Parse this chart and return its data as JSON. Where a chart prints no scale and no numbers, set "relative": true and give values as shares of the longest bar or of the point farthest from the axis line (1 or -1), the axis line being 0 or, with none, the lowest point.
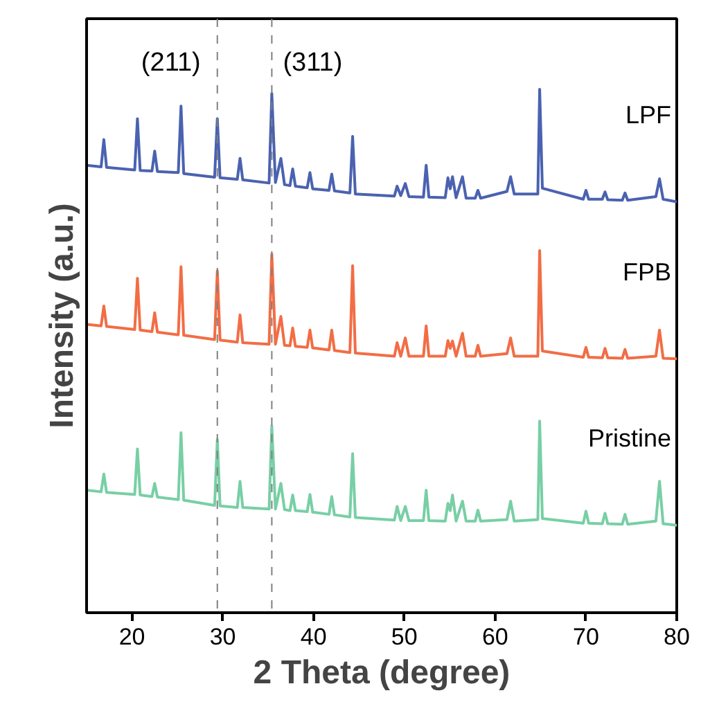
{
  "chart_data": {
    "type": "line",
    "xlabel": "2 Theta (degree)",
    "ylabel": "Intensity (a.u.)",
    "relative": true,
    "tick_labels": "x",
    "grid": false,
    "marker": "none",
    "line_style": "solid",
    "x": [
      15,
      16.6,
      16.9,
      17.2,
      20.3,
      20.6,
      20.9,
      22.2,
      22.5,
      22.8,
      25.1,
      25.4,
      25.7,
      29.1,
      29.4,
      29.7,
      31.6,
      31.9,
      32.2,
      35.1,
      35.4,
      35.8,
      36.4,
      36.8,
      37.4,
      37.7,
      38.0,
      39.3,
      39.6,
      39.9,
      41.7,
      42.0,
      42.3,
      44.0,
      44.3,
      44.6,
      48.9,
      49.2,
      49.6,
      50.1,
      50.5,
      52.1,
      52.4,
      52.7,
      54.5,
      54.8,
      55.05,
      55.3,
      55.7,
      56.4,
      56.8,
      57.8,
      58.1,
      58.4,
      61.3,
      61.7,
      62.1,
      64.7,
      64.9,
      65.2,
      69.7,
      70.0,
      70.3,
      71.8,
      72.1,
      72.4,
      74.0,
      74.3,
      74.6,
      77.7,
      78.1,
      78.5,
      80
    ],
    "xlim": [
      15,
      80
    ],
    "xticks": [
      20,
      30,
      40,
      50,
      60,
      70,
      80
    ],
    "series": [
      {
        "name": "LPF",
        "color": "#4a62b0",
        "values": [
          0.855,
          0.852,
          0.904,
          0.851,
          0.846,
          0.944,
          0.845,
          0.844,
          0.882,
          0.843,
          0.841,
          0.968,
          0.839,
          0.832,
          0.944,
          0.831,
          0.828,
          0.868,
          0.827,
          0.821,
          0.992,
          0.822,
          0.868,
          0.818,
          0.816,
          0.848,
          0.815,
          0.812,
          0.841,
          0.81,
          0.807,
          0.838,
          0.806,
          0.802,
          0.91,
          0.8,
          0.796,
          0.815,
          0.797,
          0.82,
          0.795,
          0.794,
          0.855,
          0.794,
          0.793,
          0.831,
          0.81,
          0.833,
          0.793,
          0.833,
          0.792,
          0.792,
          0.807,
          0.792,
          0.805,
          0.833,
          0.8,
          0.8,
          1.0,
          0.811,
          0.79,
          0.807,
          0.79,
          0.79,
          0.804,
          0.789,
          0.788,
          0.802,
          0.788,
          0.795,
          0.829,
          0.79,
          0.785
        ]
      },
      {
        "name": "FPB",
        "color": "#f26d45",
        "values": [
          0.551,
          0.548,
          0.586,
          0.547,
          0.541,
          0.639,
          0.54,
          0.537,
          0.573,
          0.536,
          0.531,
          0.661,
          0.53,
          0.522,
          0.653,
          0.521,
          0.517,
          0.569,
          0.516,
          0.513,
          0.685,
          0.513,
          0.566,
          0.511,
          0.51,
          0.544,
          0.509,
          0.507,
          0.54,
          0.506,
          0.502,
          0.54,
          0.501,
          0.497,
          0.663,
          0.496,
          0.49,
          0.516,
          0.49,
          0.525,
          0.49,
          0.49,
          0.548,
          0.49,
          0.49,
          0.52,
          0.505,
          0.519,
          0.49,
          0.534,
          0.49,
          0.49,
          0.511,
          0.49,
          0.495,
          0.525,
          0.49,
          0.49,
          0.692,
          0.5,
          0.488,
          0.507,
          0.488,
          0.487,
          0.505,
          0.487,
          0.486,
          0.503,
          0.486,
          0.49,
          0.54,
          0.486,
          0.485
        ]
      },
      {
        "name": "Pristine",
        "color": "#78cfa5",
        "values": [
          0.234,
          0.231,
          0.265,
          0.23,
          0.226,
          0.313,
          0.225,
          0.222,
          0.247,
          0.221,
          0.216,
          0.344,
          0.215,
          0.205,
          0.331,
          0.204,
          0.201,
          0.251,
          0.201,
          0.198,
          0.357,
          0.198,
          0.247,
          0.197,
          0.195,
          0.225,
          0.195,
          0.193,
          0.226,
          0.192,
          0.188,
          0.222,
          0.187,
          0.183,
          0.304,
          0.182,
          0.177,
          0.203,
          0.176,
          0.203,
          0.176,
          0.176,
          0.234,
          0.176,
          0.175,
          0.209,
          0.195,
          0.225,
          0.175,
          0.213,
          0.175,
          0.175,
          0.196,
          0.175,
          0.178,
          0.213,
          0.175,
          0.178,
          0.366,
          0.18,
          0.171,
          0.194,
          0.171,
          0.17,
          0.19,
          0.17,
          0.169,
          0.188,
          0.169,
          0.175,
          0.251,
          0.17,
          0.167
        ]
      }
    ],
    "annotations": [
      "(211)",
      "(311)"
    ],
    "ref_lines": [
      {
        "axis": "x",
        "value": 29.4,
        "color": "#808080",
        "line_style": "dashed"
      },
      {
        "axis": "x",
        "value": 35.4,
        "color": "#808080",
        "line_style": "dashed"
      }
    ]
  }
}
